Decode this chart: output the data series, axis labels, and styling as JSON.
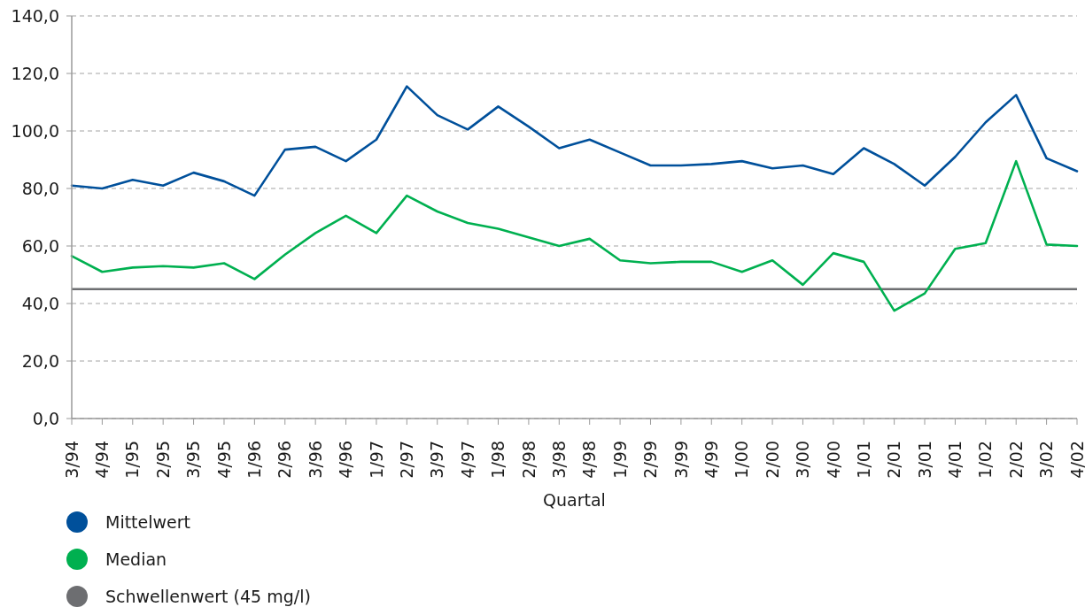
{
  "chart_data": {
    "type": "line",
    "xlabel": "Quartal",
    "categories": [
      "3/94",
      "4/94",
      "1/95",
      "2/95",
      "3/95",
      "4/95",
      "1/96",
      "2/96",
      "3/96",
      "4/96",
      "1/97",
      "2/97",
      "3/97",
      "4/97",
      "1/98",
      "2/98",
      "3/98",
      "4/98",
      "1/99",
      "2/99",
      "3/99",
      "4/99",
      "1/00",
      "2/00",
      "3/00",
      "4/00",
      "1/01",
      "2/01",
      "3/01",
      "4/01",
      "1/02",
      "2/02",
      "3/02",
      "4/02"
    ],
    "series": [
      {
        "name": "Mittelwert",
        "color": "#00509b",
        "values": [
          81,
          80,
          83,
          81,
          85.5,
          82.5,
          77.5,
          93.5,
          94.5,
          89.5,
          97,
          115.5,
          105.5,
          100.5,
          108.5,
          101.5,
          94,
          97,
          92.5,
          88,
          88,
          88.5,
          89.5,
          87,
          88,
          85,
          94,
          88.5,
          81,
          91,
          103,
          112.5,
          90.5,
          86
        ]
      },
      {
        "name": "Median",
        "color": "#00b050",
        "values": [
          56.5,
          51,
          52.5,
          53,
          52.5,
          54,
          48.5,
          57,
          64.5,
          70.5,
          64.5,
          77.5,
          72,
          68,
          66,
          63,
          60,
          62.5,
          55,
          54,
          54.5,
          54.5,
          51,
          55,
          46.5,
          57.5,
          54.5,
          37.5,
          43.5,
          59,
          61,
          89.5,
          60.5,
          60
        ]
      }
    ],
    "ylim": [
      0,
      140
    ],
    "yticks": [
      {
        "value": 0,
        "label": "0,0"
      },
      {
        "value": 20,
        "label": "20,0"
      },
      {
        "value": 40,
        "label": "40,0"
      },
      {
        "value": 60,
        "label": "60,0"
      },
      {
        "value": 80,
        "label": "80,0"
      },
      {
        "value": 100,
        "label": "100,0"
      },
      {
        "value": 120,
        "label": "120,0"
      },
      {
        "value": 140,
        "label": "140,0"
      }
    ],
    "grid": "y",
    "legend": "bottom left",
    "marker": "none",
    "line_style": "solid",
    "ref_lines": [
      {
        "axis": "y",
        "value": 45,
        "label": "Schwellenwert (45 mg/l)",
        "color": "#6d6e71"
      }
    ]
  }
}
